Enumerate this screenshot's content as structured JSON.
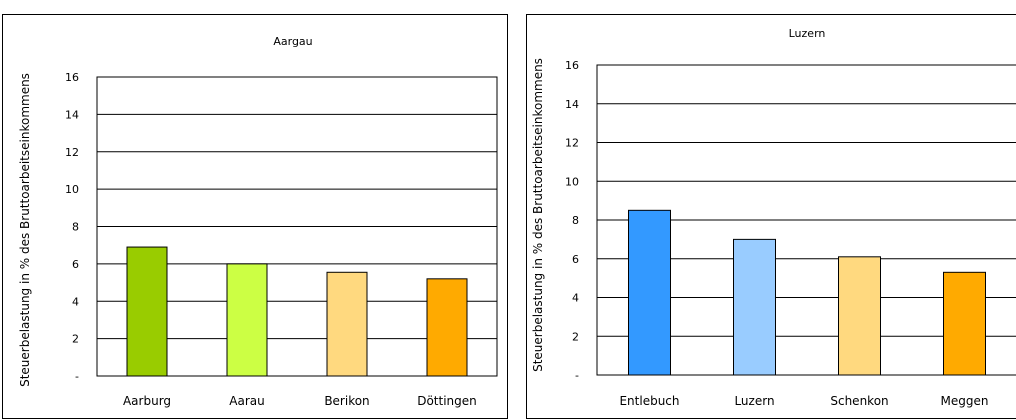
{
  "chart_data": [
    {
      "type": "bar",
      "title": "Aargau",
      "ylabel": "Steuerbelastung in % des Bruttoarbeitseinkommens",
      "xlabel": "",
      "categories": [
        "Aarburg",
        "Aarau",
        "Berikon",
        "Döttingen"
      ],
      "values": [
        6.9,
        6.0,
        5.55,
        5.2
      ],
      "colors": [
        "#99cc00",
        "#ccff44",
        "#ffd97f",
        "#ffaa00"
      ],
      "ylim": [
        0,
        16
      ],
      "yticks": [
        "-",
        "2",
        "4",
        "6",
        "8",
        "10",
        "12",
        "14",
        "16"
      ],
      "grid": true,
      "legend": "none"
    },
    {
      "type": "bar",
      "title": "Luzern",
      "ylabel": "Steuerbelastung in % des Bruttoarbeitseinkommens",
      "xlabel": "",
      "categories": [
        "Entlebuch",
        "Luzern",
        "Schenkon",
        "Meggen"
      ],
      "values": [
        8.5,
        7.0,
        6.1,
        5.3
      ],
      "colors": [
        "#3399ff",
        "#99ccff",
        "#ffd97f",
        "#ffaa00"
      ],
      "ylim": [
        0,
        16
      ],
      "yticks": [
        "-",
        "2",
        "4",
        "6",
        "8",
        "10",
        "12",
        "14",
        "16"
      ],
      "grid": true,
      "legend": "none"
    }
  ]
}
